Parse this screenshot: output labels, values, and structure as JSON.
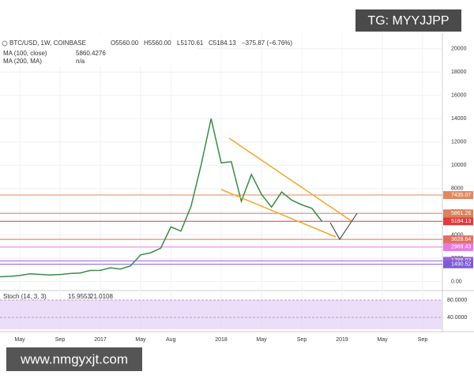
{
  "watermark": "TG: MYYJJPP",
  "footer": "www.nmgyxjt.com",
  "header": {
    "symbol": "BTC/USD, 1W, COINBASE",
    "open": "O5560.00",
    "high": "H5560.00",
    "low": "L5170.61",
    "close": "C5184.13",
    "change": "−375.87 (−6.76%)"
  },
  "indicators": [
    {
      "name": "MA (100, close)",
      "value": "5860.4276"
    },
    {
      "name": "MA (200, MA)",
      "value": "n/a"
    }
  ],
  "chart_data": {
    "type": "line",
    "categories": [
      null,
      null,
      "May",
      null,
      null,
      null,
      "Sep",
      null,
      null,
      null,
      "2017",
      null,
      null,
      null,
      "May",
      null,
      null,
      "Aug",
      null,
      null,
      null,
      null,
      "2018",
      null,
      null,
      null,
      "May",
      null,
      null,
      null,
      "Sep",
      null,
      null,
      null,
      "2019",
      null,
      null,
      null,
      "May",
      null,
      null,
      null,
      "Sep",
      null
    ],
    "series": [
      {
        "name": "BTC/USD",
        "color": "#3a8a4a",
        "values": [
          420,
          450,
          530,
          670,
          620,
          575,
          610,
          700,
          740,
          960,
          970,
          1190,
          1080,
          1350,
          2300,
          2480,
          2870,
          4700,
          4340,
          6450,
          10000,
          14000,
          10200,
          10300,
          6900,
          9200,
          7500,
          6400,
          7700,
          7000,
          6600,
          6300,
          5184.13,
          null,
          null,
          null,
          null,
          null,
          null,
          null,
          null,
          null,
          null,
          null
        ]
      }
    ],
    "ylim": [
      -700,
      20800
    ],
    "yticks": [
      {
        "value": 0,
        "label": "0.00"
      },
      2000,
      4000,
      6000,
      8000,
      10000,
      12000,
      14000,
      16000,
      18000,
      20000
    ],
    "grid": true,
    "levels": [
      {
        "value": 7435.07,
        "color": "#e0875e"
      },
      {
        "value": 5861.26,
        "color": "#d9825b"
      },
      {
        "value": 5184.13,
        "color": "#e0393e"
      },
      {
        "value": 3628.64,
        "color": "#e07060"
      },
      {
        "value": 2969.43,
        "color": "#e879e0"
      },
      {
        "value": 1788.03,
        "color": "#9c5fd6"
      },
      {
        "value": 1490.52,
        "color": "#7b5cd6"
      }
    ]
  },
  "stoch": {
    "title": "Stoch (14, 3, 3)",
    "k": "15.9553",
    "d": "21.0108",
    "ylim": [
      0,
      100
    ],
    "yticks": [
      {
        "value": 80,
        "label": "80.0000"
      },
      {
        "value": 40,
        "label": "40.0000"
      }
    ]
  }
}
